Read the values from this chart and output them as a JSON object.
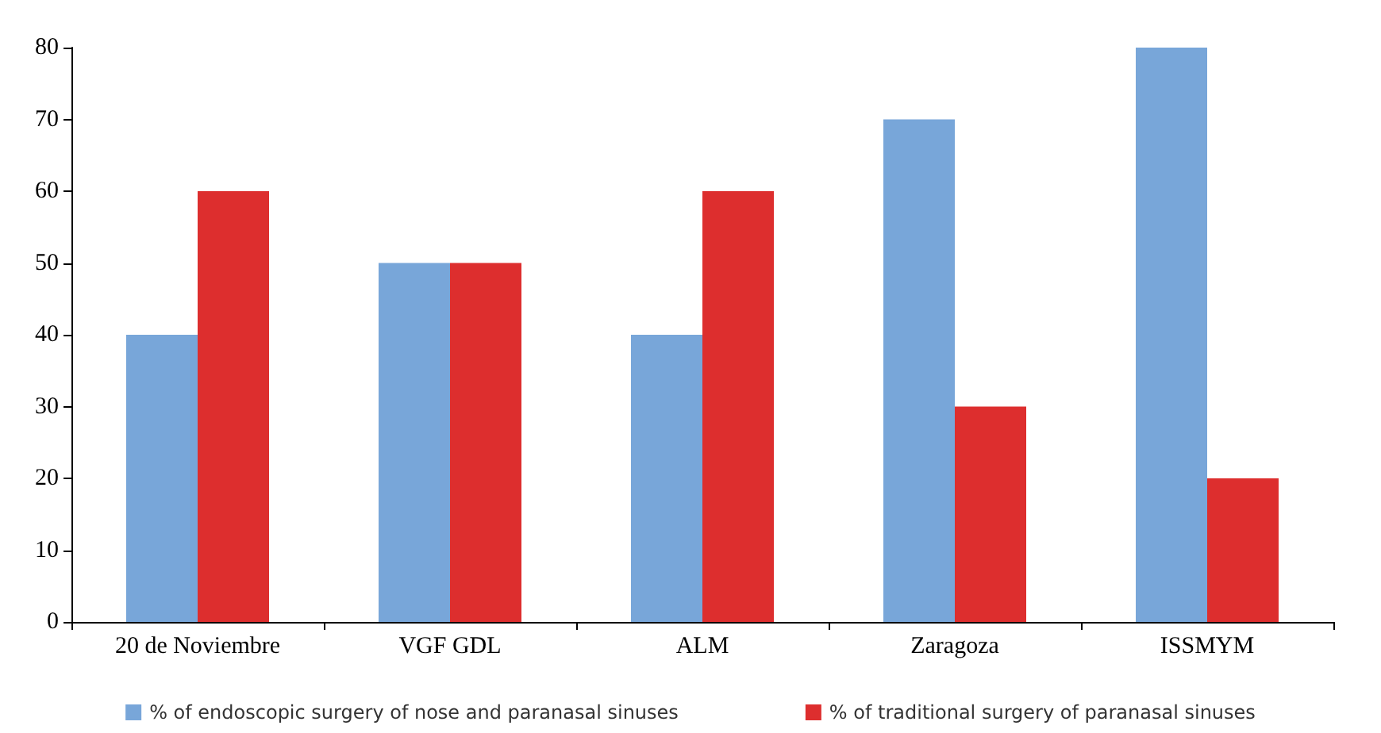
{
  "chart_data": {
    "type": "bar",
    "categories": [
      "20 de Noviembre",
      "VGF GDL",
      "ALM",
      "Zaragoza",
      "ISSMYM"
    ],
    "series": [
      {
        "name": "% of endoscopic surgery of nose and paranasal sinuses",
        "color": "#78a6d9",
        "values": [
          40,
          50,
          40,
          70,
          80
        ]
      },
      {
        "name": "% of traditional surgery of paranasal sinuses",
        "color": "#dd2e2e",
        "values": [
          60,
          50,
          60,
          30,
          20
        ]
      }
    ],
    "ylim": [
      0,
      80
    ],
    "yticks": [
      0,
      10,
      20,
      30,
      40,
      50,
      60,
      70,
      80
    ],
    "grid": false,
    "legend": "bottom"
  }
}
